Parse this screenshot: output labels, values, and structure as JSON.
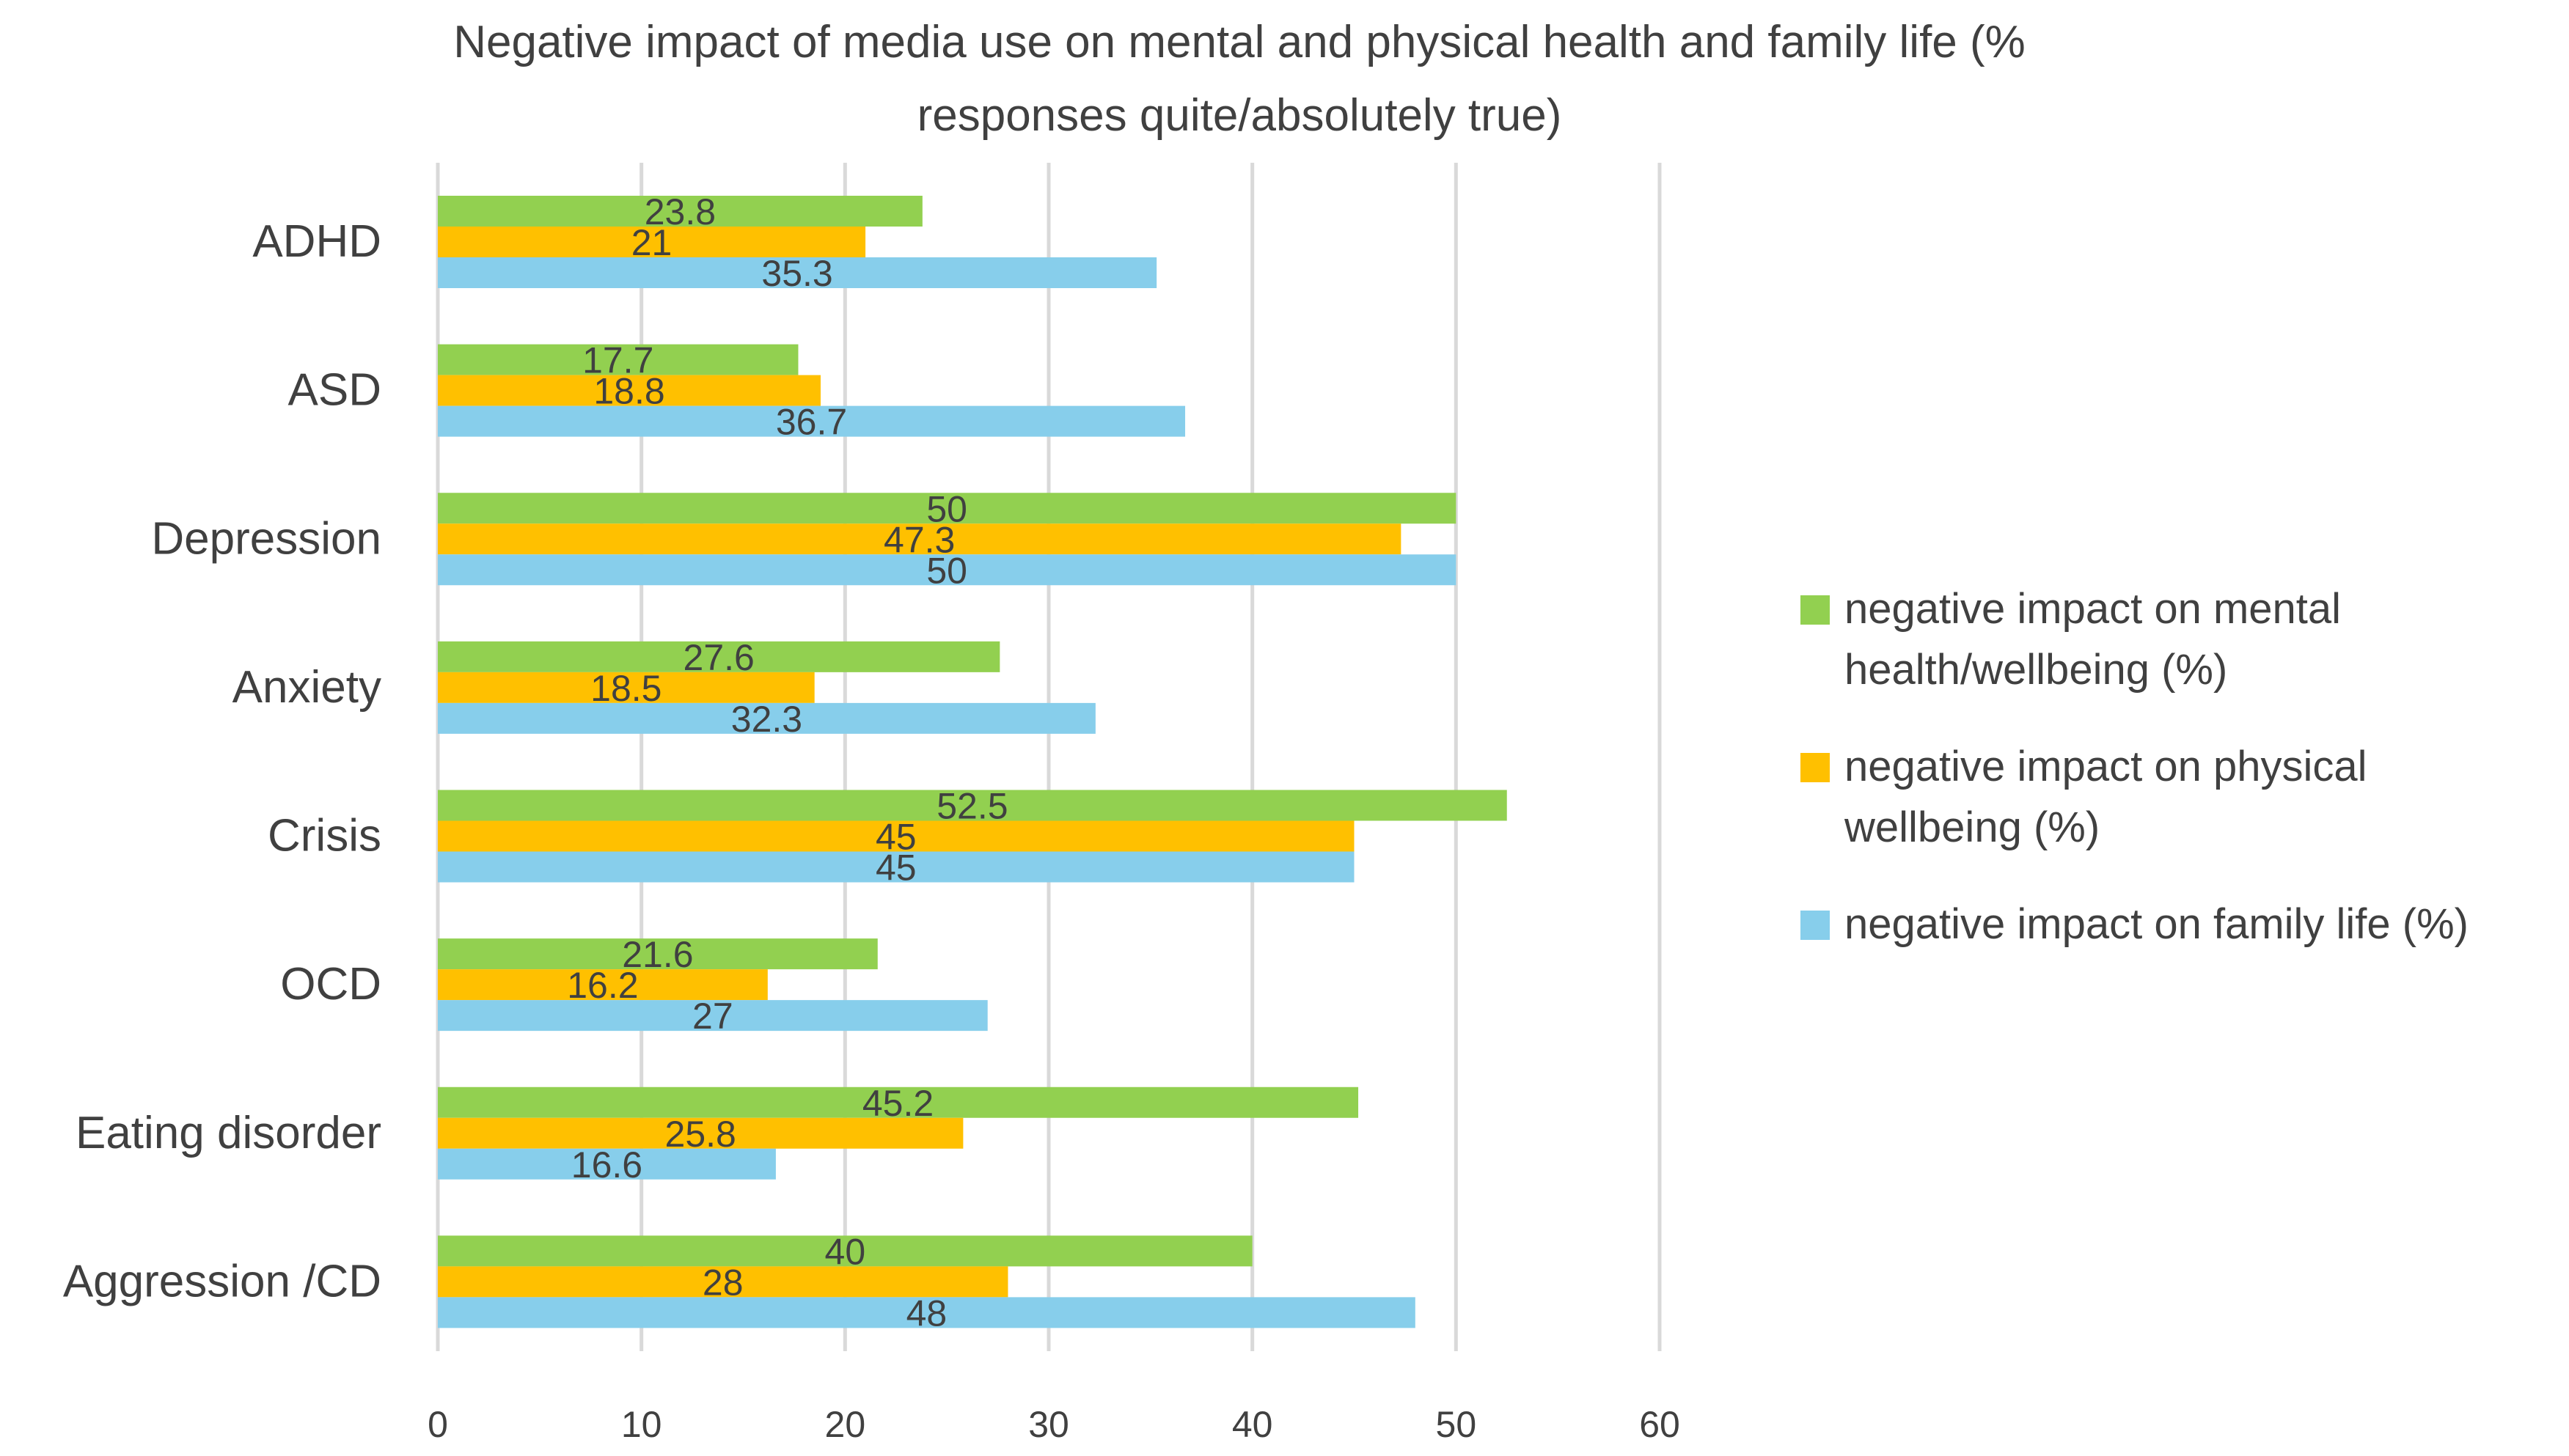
{
  "chart_data": {
    "type": "bar",
    "orientation": "horizontal",
    "title": "Negative impact of media use on mental and physical health and family life  (% responses quite/absolutely true)",
    "title_lines": [
      "Negative impact of media use on mental and physical health and family life  (%",
      "responses quite/absolutely true)"
    ],
    "categories": [
      "ADHD",
      "ASD",
      "Depression",
      "Anxiety",
      "Crisis",
      "OCD",
      "Eating disorder",
      "Aggression /CD"
    ],
    "series": [
      {
        "name": "negative impact on mental health/wellbeing (%)",
        "legend_lines": [
          "negative impact on mental",
          "health/wellbeing (%)"
        ],
        "color": "#92d050",
        "values": [
          23.8,
          17.7,
          50,
          27.6,
          52.5,
          21.6,
          45.2,
          40
        ]
      },
      {
        "name": "negative impact on physical wellbeing (%)",
        "legend_lines": [
          "negative impact on physical",
          "wellbeing (%)"
        ],
        "color": "#ffc000",
        "values": [
          21,
          18.8,
          47.3,
          18.5,
          45,
          16.2,
          25.8,
          28
        ]
      },
      {
        "name": "negative impact on family life (%)",
        "legend_lines": [
          "negative impact on family life (%)"
        ],
        "color": "#87ceeb",
        "values": [
          35.3,
          36.7,
          50,
          32.3,
          45,
          27,
          16.6,
          48
        ]
      }
    ],
    "xlim": [
      0,
      60
    ],
    "xticks": [
      0,
      10,
      20,
      30,
      40,
      50,
      60
    ],
    "grid": true,
    "legend_position": "right",
    "xlabel": "",
    "ylabel": ""
  }
}
